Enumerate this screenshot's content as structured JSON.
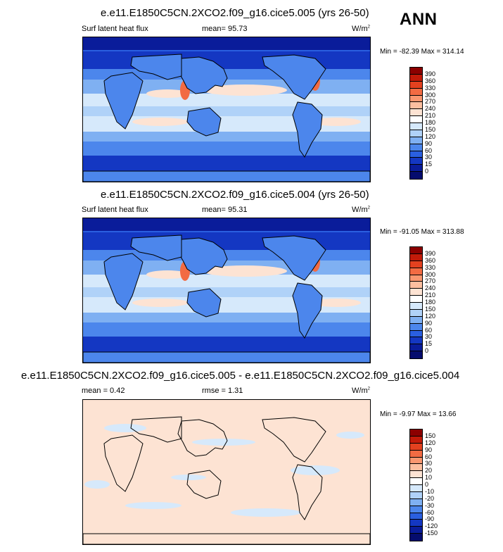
{
  "season_label": "ANN",
  "panels": [
    {
      "title": "e.e11.E1850C5CN.2XCO2.f09_g16.cice5.005 (yrs 26-50)",
      "left_label": "Surf latent heat flux",
      "mid_label": "mean=  95.73",
      "units": "W/m",
      "units_sup": "2",
      "minmax": "Min = -82.39 Max = 314.14",
      "colorbar": {
        "levels": [
          "390",
          "360",
          "330",
          "300",
          "270",
          "240",
          "210",
          "180",
          "150",
          "120",
          "90",
          "60",
          "30",
          "15",
          "0"
        ],
        "colors": [
          "#8c0000",
          "#c21a09",
          "#e3411f",
          "#f26b43",
          "#f99770",
          "#fcbfa0",
          "#fde3d3",
          "#ffffff",
          "#d6e9fb",
          "#b0d2f8",
          "#7fb0f2",
          "#4c86ec",
          "#2a5fe0",
          "#1437c2",
          "#0a1c9a",
          "#050c6e"
        ]
      }
    },
    {
      "title": "e.e11.E1850C5CN.2XCO2.f09_g16.cice5.004 (yrs 26-50)",
      "left_label": "Surf latent heat flux",
      "mid_label": "mean=  95.31",
      "units": "W/m",
      "units_sup": "2",
      "minmax": "Min = -91.05 Max = 313.88",
      "colorbar": {
        "levels": [
          "390",
          "360",
          "330",
          "300",
          "270",
          "240",
          "210",
          "180",
          "150",
          "120",
          "90",
          "60",
          "30",
          "15",
          "0"
        ],
        "colors": [
          "#8c0000",
          "#c21a09",
          "#e3411f",
          "#f26b43",
          "#f99770",
          "#fcbfa0",
          "#fde3d3",
          "#ffffff",
          "#d6e9fb",
          "#b0d2f8",
          "#7fb0f2",
          "#4c86ec",
          "#2a5fe0",
          "#1437c2",
          "#0a1c9a",
          "#050c6e"
        ]
      }
    },
    {
      "title": "e.e11.E1850C5CN.2XCO2.f09_g16.cice5.005 - e.e11.E1850C5CN.2XCO2.f09_g16.cice5.004",
      "left_label": "mean =   0.42",
      "mid_label": "rmse =   1.31",
      "units": "W/m",
      "units_sup": "2",
      "minmax": "Min = -9.97 Max = 13.66",
      "colorbar": {
        "levels": [
          "150",
          "120",
          "90",
          "60",
          "30",
          "20",
          "10",
          "0",
          "-10",
          "-20",
          "-30",
          "-60",
          "-90",
          "-120",
          "-150"
        ],
        "colors": [
          "#8c0000",
          "#c21a09",
          "#e3411f",
          "#f26b43",
          "#f99770",
          "#fcbfa0",
          "#fde3d3",
          "#ffffff",
          "#d6e9fb",
          "#b0d2f8",
          "#7fb0f2",
          "#4c86ec",
          "#2a5fe0",
          "#1437c2",
          "#0a1c9a",
          "#050c6e"
        ]
      }
    }
  ],
  "chart_data": {
    "type": "heatmap",
    "variable": "Surf latent heat flux",
    "units": "W/m2",
    "season": "ANN",
    "maps": [
      {
        "case": "e.e11.E1850C5CN.2XCO2.f09_g16.cice5.005",
        "years": "26-50",
        "mean": 95.73,
        "min": -82.39,
        "max": 314.14,
        "levels": [
          0,
          15,
          30,
          60,
          90,
          120,
          150,
          180,
          210,
          240,
          270,
          300,
          330,
          360,
          390
        ]
      },
      {
        "case": "e.e11.E1850C5CN.2XCO2.f09_g16.cice5.004",
        "years": "26-50",
        "mean": 95.31,
        "min": -91.05,
        "max": 313.88,
        "levels": [
          0,
          15,
          30,
          60,
          90,
          120,
          150,
          180,
          210,
          240,
          270,
          300,
          330,
          360,
          390
        ]
      },
      {
        "case": "difference (005 - 004)",
        "mean": 0.42,
        "rmse": 1.31,
        "min": -9.97,
        "max": 13.66,
        "levels": [
          -150,
          -120,
          -90,
          -60,
          -30,
          -20,
          -10,
          0,
          10,
          20,
          30,
          60,
          90,
          120,
          150
        ]
      }
    ]
  }
}
